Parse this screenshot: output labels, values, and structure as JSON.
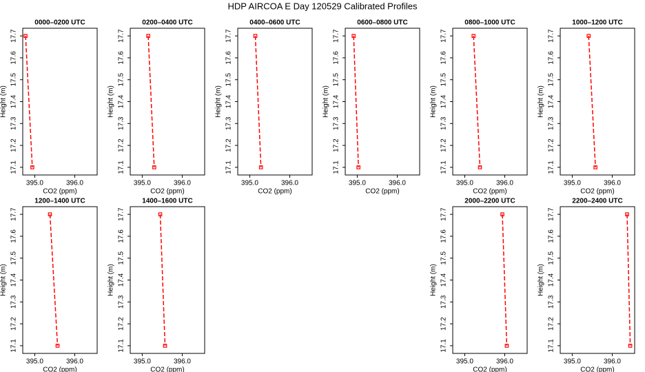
{
  "title": "HDP AIRCOA E  Day 120529  Calibrated Profiles",
  "chart_data": [
    {
      "type": "line",
      "title": "0000–0200 UTC",
      "x_label": "CO2 (ppm)",
      "y_label": "Height (m)",
      "color": "#ff0000",
      "x": [
        394.77,
        394.94
      ],
      "values": [
        17.7,
        17.1
      ],
      "xlim": [
        394.7,
        396.56
      ],
      "xticks": [
        {
          "value": 395,
          "label": "395.0"
        },
        {
          "value": 396,
          "label": "396.0"
        }
      ],
      "ylim": [
        17.065,
        17.735
      ],
      "yticks": [
        17.1,
        17.2,
        17.3,
        17.4,
        17.5,
        17.6,
        17.7
      ]
    },
    {
      "type": "line",
      "title": "0200–0400 UTC",
      "x_label": "CO2 (ppm)",
      "y_label": "Height (m)",
      "color": "#ff0000",
      "x": [
        395.15,
        395.3
      ],
      "values": [
        17.7,
        17.1
      ],
      "xlim": [
        394.7,
        396.56
      ],
      "xticks": [
        {
          "value": 395,
          "label": "395.0"
        },
        {
          "value": 396,
          "label": "396.0"
        }
      ],
      "ylim": [
        17.065,
        17.735
      ],
      "yticks": [
        17.1,
        17.2,
        17.3,
        17.4,
        17.5,
        17.6,
        17.7
      ]
    },
    {
      "type": "line",
      "title": "0400–0600 UTC",
      "x_label": "CO2 (ppm)",
      "y_label": "Height (m)",
      "color": "#ff0000",
      "x": [
        395.14,
        395.28
      ],
      "values": [
        17.7,
        17.1
      ],
      "xlim": [
        394.7,
        396.56
      ],
      "xticks": [
        {
          "value": 395,
          "label": "395.0"
        },
        {
          "value": 396,
          "label": "396.0"
        }
      ],
      "ylim": [
        17.065,
        17.735
      ],
      "yticks": [
        17.1,
        17.2,
        17.3,
        17.4,
        17.5,
        17.6,
        17.7
      ]
    },
    {
      "type": "line",
      "title": "0600–0800 UTC",
      "x_label": "CO2 (ppm)",
      "y_label": "Height (m)",
      "color": "#ff0000",
      "x": [
        394.91,
        395.03
      ],
      "values": [
        17.7,
        17.1
      ],
      "xlim": [
        394.7,
        396.56
      ],
      "xticks": [
        {
          "value": 395,
          "label": "395.0"
        },
        {
          "value": 396,
          "label": "396.0"
        }
      ],
      "ylim": [
        17.065,
        17.735
      ],
      "yticks": [
        17.1,
        17.2,
        17.3,
        17.4,
        17.5,
        17.6,
        17.7
      ]
    },
    {
      "type": "line",
      "title": "0800–1000 UTC",
      "x_label": "CO2 (ppm)",
      "y_label": "Height (m)",
      "color": "#ff0000",
      "x": [
        395.22,
        395.38
      ],
      "values": [
        17.7,
        17.1
      ],
      "xlim": [
        394.7,
        396.56
      ],
      "xticks": [
        {
          "value": 395,
          "label": "395.0"
        },
        {
          "value": 396,
          "label": "396.0"
        }
      ],
      "ylim": [
        17.065,
        17.735
      ],
      "yticks": [
        17.1,
        17.2,
        17.3,
        17.4,
        17.5,
        17.6,
        17.7
      ]
    },
    {
      "type": "line",
      "title": "1000–1200 UTC",
      "x_label": "CO2 (ppm)",
      "y_label": "Height (m)",
      "color": "#ff0000",
      "x": [
        395.41,
        395.58
      ],
      "values": [
        17.7,
        17.1
      ],
      "xlim": [
        394.7,
        396.56
      ],
      "xticks": [
        {
          "value": 395,
          "label": "395.0"
        },
        {
          "value": 396,
          "label": "396.0"
        }
      ],
      "ylim": [
        17.065,
        17.735
      ],
      "yticks": [
        17.1,
        17.2,
        17.3,
        17.4,
        17.5,
        17.6,
        17.7
      ]
    },
    {
      "type": "line",
      "title": "1200–1400 UTC",
      "x_label": "CO2 (ppm)",
      "y_label": "Height (m)",
      "color": "#ff0000",
      "x": [
        395.38,
        395.57
      ],
      "values": [
        17.7,
        17.1
      ],
      "xlim": [
        394.7,
        396.56
      ],
      "xticks": [
        {
          "value": 395,
          "label": "395.0"
        },
        {
          "value": 396,
          "label": "396.0"
        }
      ],
      "ylim": [
        17.065,
        17.735
      ],
      "yticks": [
        17.1,
        17.2,
        17.3,
        17.4,
        17.5,
        17.6,
        17.7
      ]
    },
    {
      "type": "line",
      "title": "1400–1600 UTC",
      "x_label": "CO2 (ppm)",
      "y_label": "Height (m)",
      "color": "#ff0000",
      "x": [
        395.45,
        395.57
      ],
      "values": [
        17.7,
        17.1
      ],
      "xlim": [
        394.7,
        396.56
      ],
      "xticks": [
        {
          "value": 395,
          "label": "395.0"
        },
        {
          "value": 396,
          "label": "396.0"
        }
      ],
      "ylim": [
        17.065,
        17.735
      ],
      "yticks": [
        17.1,
        17.2,
        17.3,
        17.4,
        17.5,
        17.6,
        17.7
      ]
    },
    {
      "type": "line",
      "title": "2000–2200 UTC",
      "x_label": "CO2 (ppm)",
      "y_label": "Height (m)",
      "color": "#ff0000",
      "x": [
        395.94,
        396.05
      ],
      "values": [
        17.7,
        17.1
      ],
      "xlim": [
        394.7,
        396.56
      ],
      "xticks": [
        {
          "value": 395,
          "label": "395.0"
        },
        {
          "value": 396,
          "label": "396.0"
        }
      ],
      "ylim": [
        17.065,
        17.735
      ],
      "yticks": [
        17.1,
        17.2,
        17.3,
        17.4,
        17.5,
        17.6,
        17.7
      ]
    },
    {
      "type": "line",
      "title": "2200–2400 UTC",
      "x_label": "CO2 (ppm)",
      "y_label": "Height (m)",
      "color": "#ff0000",
      "x": [
        396.37,
        396.45
      ],
      "values": [
        17.7,
        17.1
      ],
      "xlim": [
        394.7,
        396.56
      ],
      "xticks": [
        {
          "value": 395,
          "label": "395.0"
        },
        {
          "value": 396,
          "label": "396.0"
        }
      ],
      "ylim": [
        17.065,
        17.735
      ],
      "yticks": [
        17.1,
        17.2,
        17.3,
        17.4,
        17.5,
        17.6,
        17.7
      ]
    }
  ]
}
